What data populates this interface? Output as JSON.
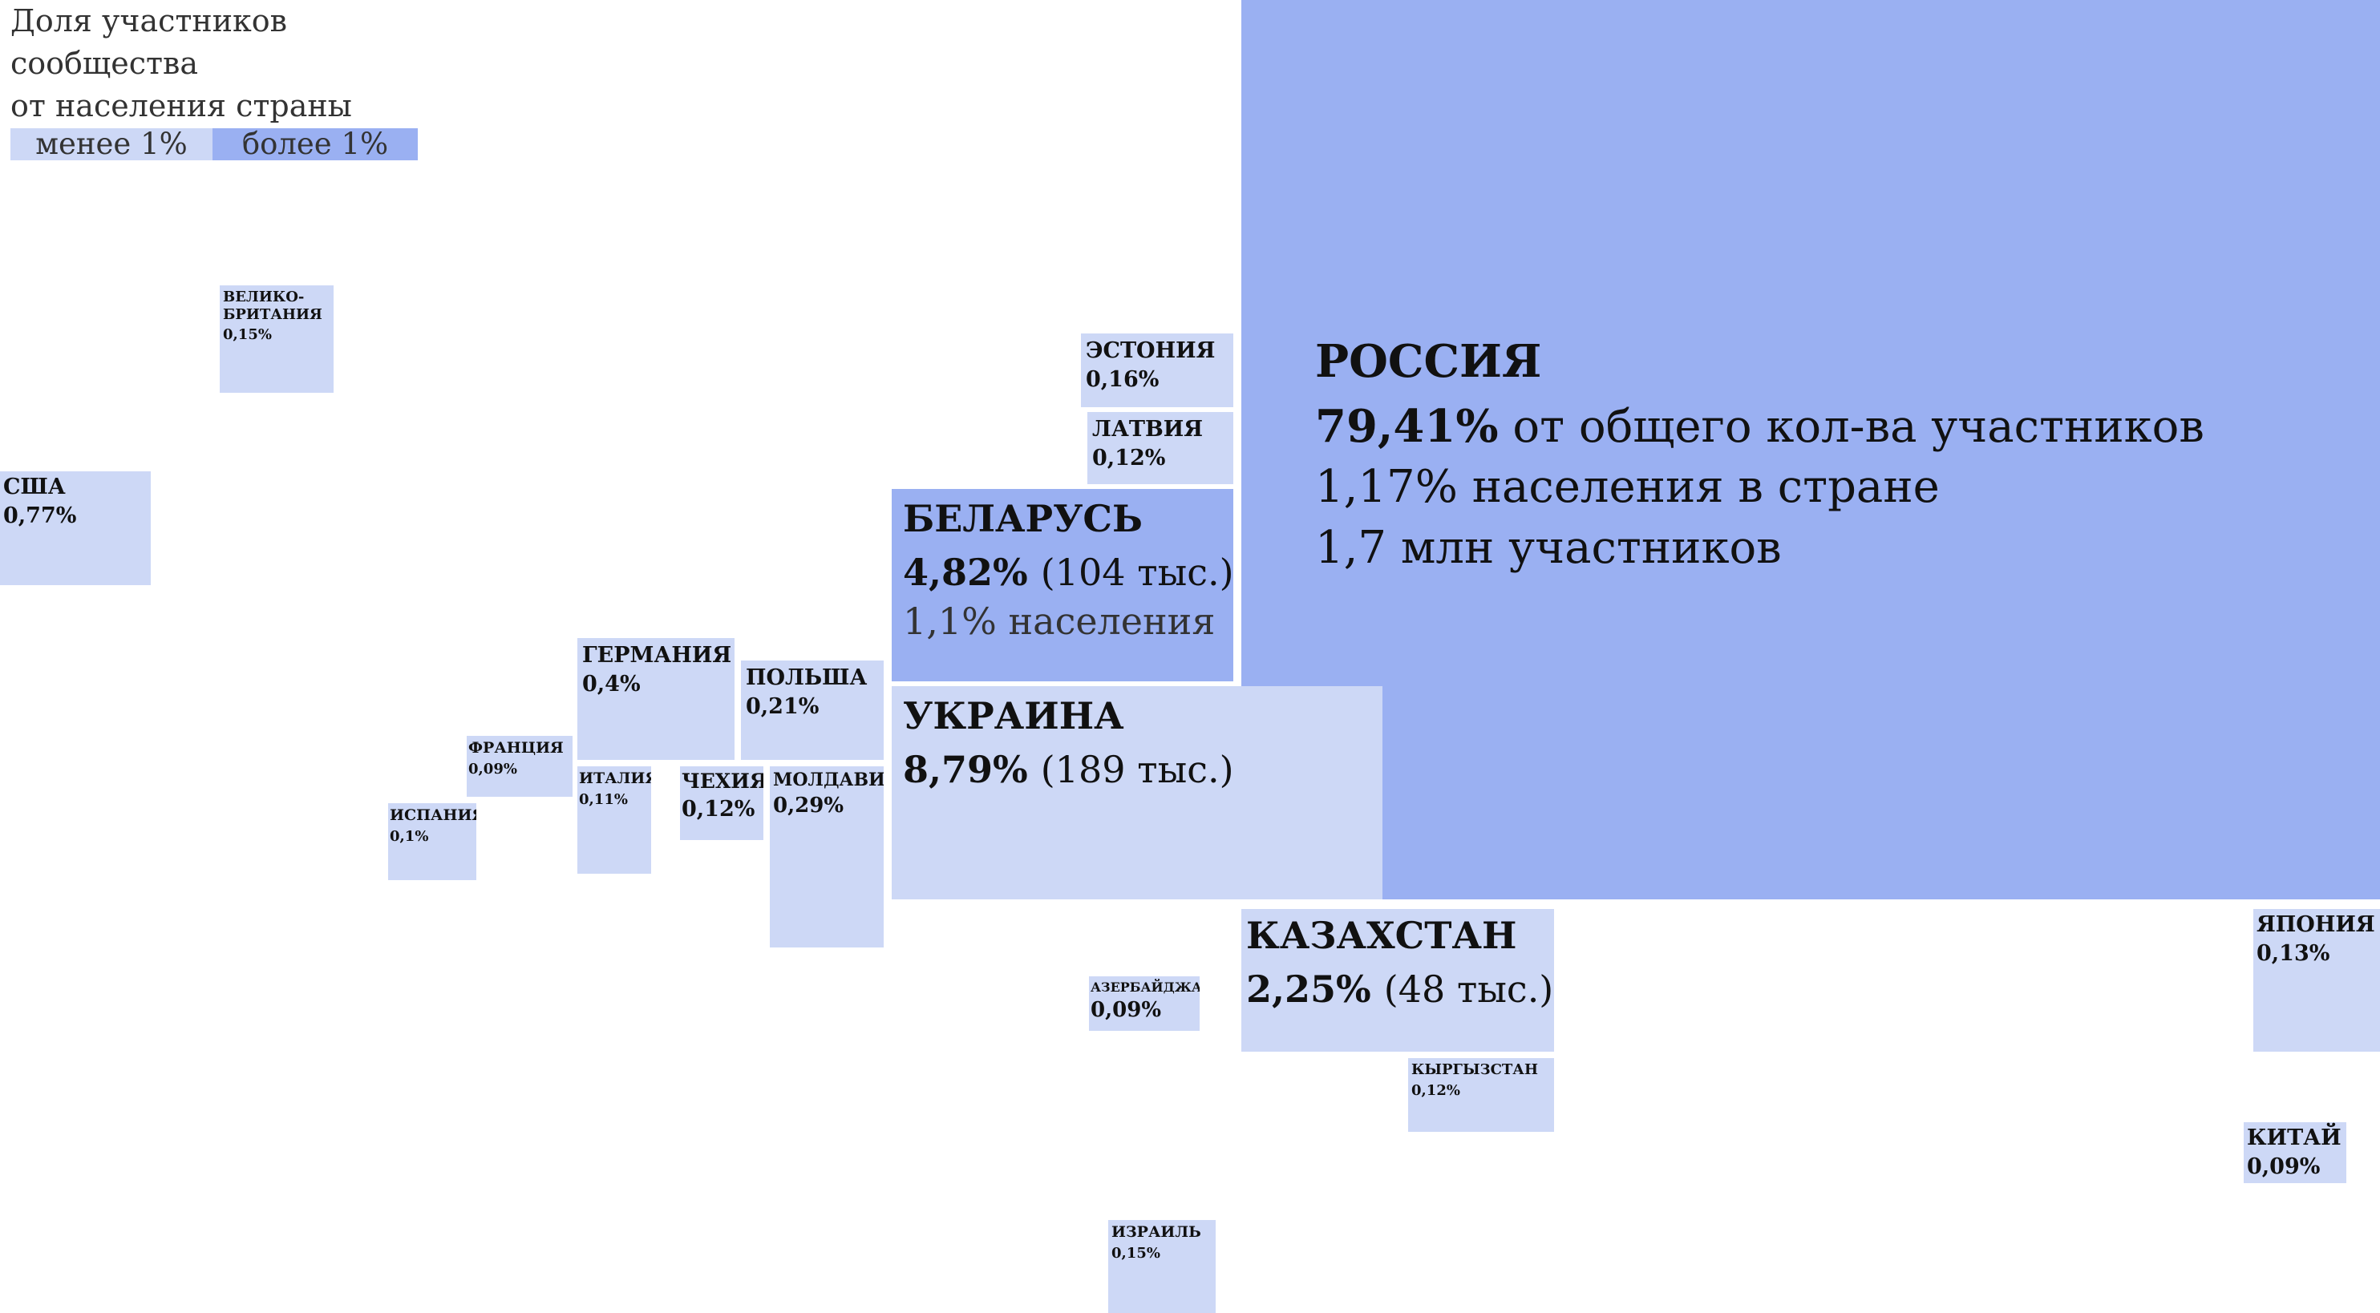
{
  "colors": {
    "low": "#cdd8f6",
    "high": "#9ab0f2"
  },
  "legend": {
    "title_lines": [
      "Доля участников",
      "сообщества",
      "от населения страны"
    ],
    "low_label": "менее 1%",
    "high_label": "более 1%"
  },
  "chart_data": {
    "type": "treemap-map",
    "title": "Доля участников сообщества от населения страны",
    "categories": [
      "менее 1%",
      "более 1%"
    ],
    "countries": [
      {
        "name": "РОССИЯ",
        "share": "79,41%",
        "share_value": 79.41,
        "share_suffix": "от общего кол-ва участников",
        "population_share": "1,17% населения в стране",
        "members": "1,7 млн участников",
        "category": "более 1%"
      },
      {
        "name": "УКРАИНА",
        "share": "8,79%",
        "share_value": 8.79,
        "members": "(189 тыс.)",
        "category": "менее 1%"
      },
      {
        "name": "БЕЛАРУСЬ",
        "share": "4,82%",
        "share_value": 4.82,
        "members": "(104 тыс.)",
        "population_share": "1,1% населения",
        "category": "более 1%"
      },
      {
        "name": "КАЗАХСТАН",
        "share": "2,25%",
        "share_value": 2.25,
        "members": "(48 тыс.)",
        "category": "менее 1%"
      },
      {
        "name": "США",
        "share": "0,77%",
        "share_value": 0.77,
        "category": "менее 1%"
      },
      {
        "name": "ГЕРМАНИЯ",
        "share": "0,4%",
        "share_value": 0.4,
        "category": "менее 1%"
      },
      {
        "name": "МОЛДАВИЯ",
        "share": "0,29%",
        "share_value": 0.29,
        "category": "менее 1%"
      },
      {
        "name": "ПОЛЬША",
        "share": "0,21%",
        "share_value": 0.21,
        "category": "менее 1%"
      },
      {
        "name": "ЭСТОНИЯ",
        "share": "0,16%",
        "share_value": 0.16,
        "category": "менее 1%"
      },
      {
        "name": "ВЕЛИКО-\nБРИТАНИЯ",
        "share": "0,15%",
        "share_value": 0.15,
        "category": "менее 1%"
      },
      {
        "name": "ИЗРАИЛЬ",
        "share": "0,15%",
        "share_value": 0.15,
        "category": "менее 1%"
      },
      {
        "name": "ЯПОНИЯ",
        "share": "0,13%",
        "share_value": 0.13,
        "category": "менее 1%"
      },
      {
        "name": "ЛАТВИЯ",
        "share": "0,12%",
        "share_value": 0.12,
        "category": "менее 1%"
      },
      {
        "name": "ЧЕХИЯ",
        "share": "0,12%",
        "share_value": 0.12,
        "category": "менее 1%"
      },
      {
        "name": "КЫРГЫЗСТАН",
        "share": "0,12%",
        "share_value": 0.12,
        "category": "менее 1%"
      },
      {
        "name": "ИТАЛИЯ",
        "share": "0,11%",
        "share_value": 0.11,
        "category": "менее 1%"
      },
      {
        "name": "ИСПАНИЯ",
        "share": "0,1%",
        "share_value": 0.1,
        "category": "менее 1%"
      },
      {
        "name": "ФРАНЦИЯ",
        "share": "0,09%",
        "share_value": 0.09,
        "category": "менее 1%"
      },
      {
        "name": "АЗЕРБАЙДЖАН",
        "share": "0,09%",
        "share_value": 0.09,
        "category": "менее 1%"
      },
      {
        "name": "КИТАЙ",
        "share": "0,09%",
        "share_value": 0.09,
        "category": "менее 1%"
      }
    ]
  }
}
